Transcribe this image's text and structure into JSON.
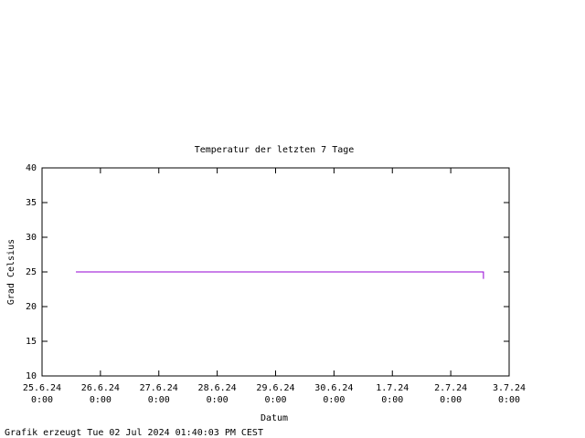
{
  "chart_data": {
    "type": "line",
    "title": "Temperatur der letzten 7 Tage",
    "x_label": "Datum",
    "y_label": "Grad Celsius",
    "footer": "Grafik erzeugt Tue 02 Jul 2024 01:40:03 PM CEST",
    "x": [
      0.58,
      7.56,
      7.56
    ],
    "series": [
      {
        "color": "#9400d3",
        "values": [
          25,
          25,
          24
        ]
      }
    ],
    "xlim": [
      0,
      8
    ],
    "xticks": [
      {
        "value": 0,
        "label": "25.6.24\n0:00"
      },
      {
        "value": 1,
        "label": "26.6.24\n0:00"
      },
      {
        "value": 2,
        "label": "27.6.24\n0:00"
      },
      {
        "value": 3,
        "label": "28.6.24\n0:00"
      },
      {
        "value": 4,
        "label": "29.6.24\n0:00"
      },
      {
        "value": 5,
        "label": "30.6.24\n0:00"
      },
      {
        "value": 6,
        "label": "1.7.24\n0:00"
      },
      {
        "value": 7,
        "label": "2.7.24\n0:00"
      },
      {
        "value": 8,
        "label": "3.7.24\n0:00"
      }
    ],
    "ylim": [
      10,
      40
    ],
    "yticks": [
      10,
      15,
      20,
      25,
      30,
      35,
      40
    ]
  }
}
